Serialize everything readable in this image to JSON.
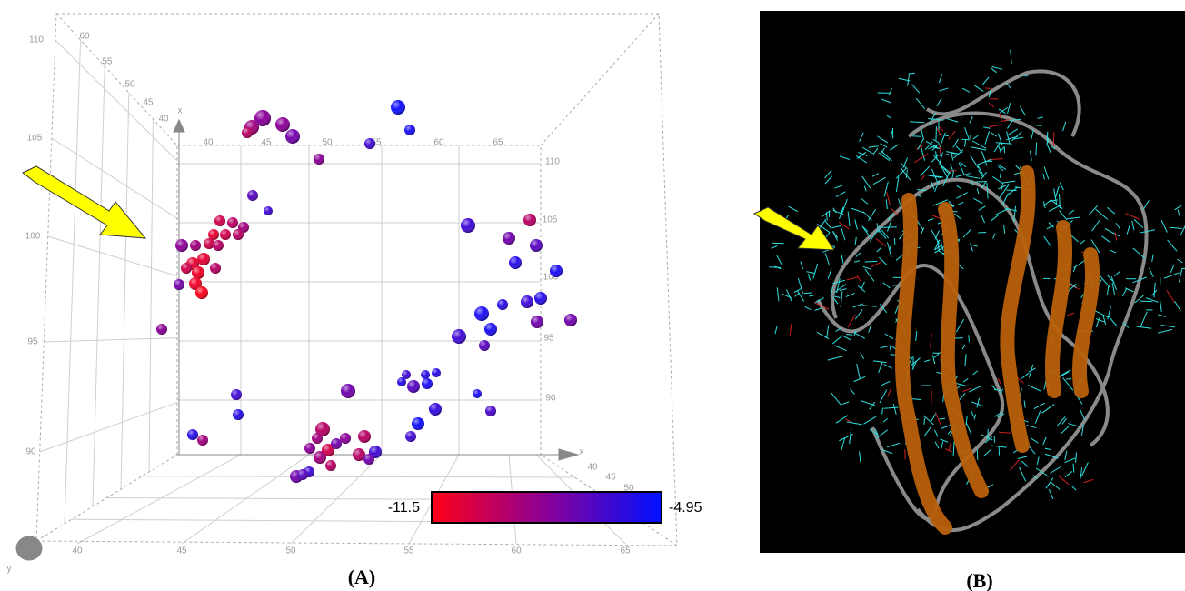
{
  "panel_a": {
    "label": "(A)",
    "z_ticks_left": [
      "110",
      "105",
      "100",
      "95",
      "90"
    ],
    "depth_ticks_back": [
      "60",
      "55",
      "50",
      "45",
      "40"
    ],
    "x_ticks_top": [
      "40",
      "45",
      "50",
      "55",
      "60",
      "65"
    ],
    "z_ticks_right": [
      "110",
      "105",
      "100",
      "95",
      "90"
    ],
    "x_ticks_bottom": [
      "40",
      "45",
      "50",
      "55",
      "60",
      "65"
    ],
    "depth_ticks_front": [
      "40",
      "45",
      "50"
    ],
    "axis_letters": [
      "x",
      "x",
      "y"
    ],
    "colorbar": {
      "min": "-11.5",
      "max": "-4.95"
    }
  },
  "panel_b": {
    "label": "(B)"
  }
}
